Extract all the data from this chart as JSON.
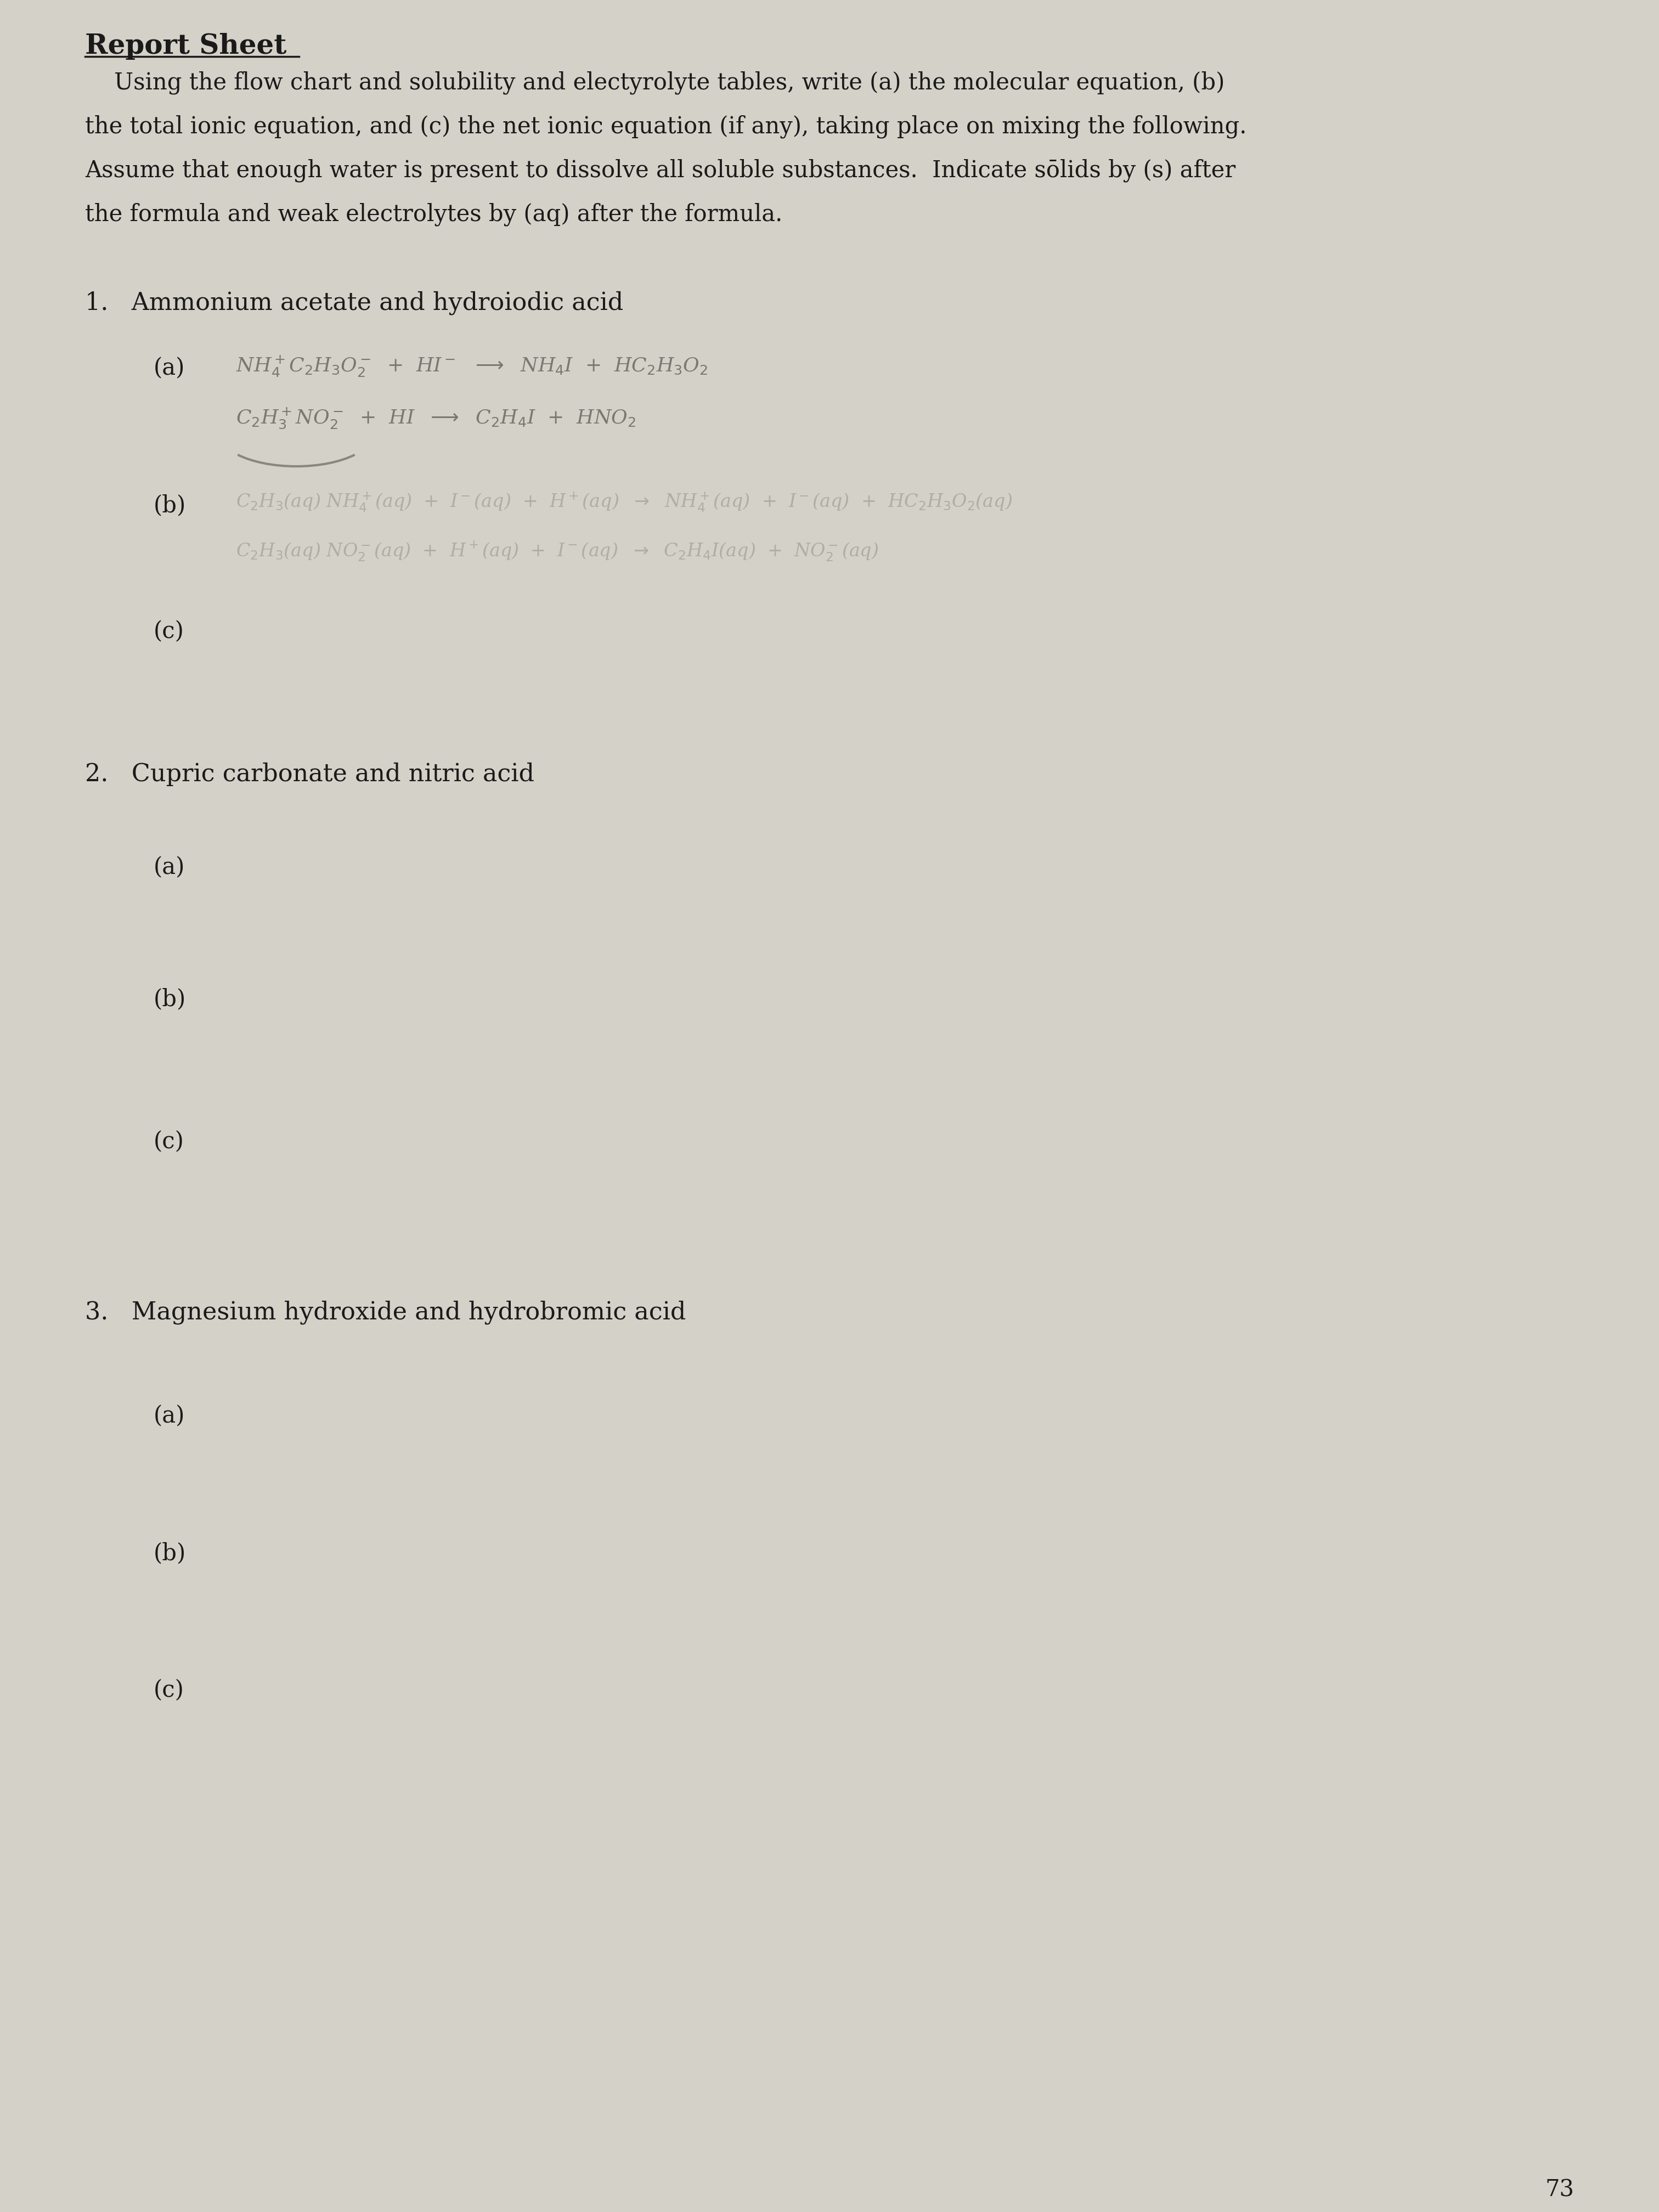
{
  "bg_color": "#d4d1c8",
  "title": "Report Sheet",
  "instructions_line1": "    Using the flow chart and solubility and electyrolyte tables, write (a) the molecular equation, (b)",
  "instructions_line2": "the total ionic equation, and (c) the net ionic equation (if any), taking place on mixing the following.",
  "instructions_line3": "Assume that enough water is present to dissolve all soluble substances.  Indicate sōlids by (s) after",
  "instructions_line4": "the formula and weak electrolytes by (aq) after the formula.",
  "problem1_label": "1.   Ammonium acetate and hydroiodic acid",
  "p1_a_label": "(a)",
  "p1_b_label": "(b)",
  "p1_c_label": "(c)",
  "problem2_label": "2.   Cupric carbonate and nitric acid",
  "p2_a_label": "(a)",
  "p2_b_label": "(b)",
  "p2_c_label": "(c)",
  "problem3_label": "3.   Magnesium hydroxide and hydrobromic acid",
  "p3_a_label": "(a)",
  "p3_b_label": "(b)",
  "p3_c_label": "(c)",
  "page_number": "73",
  "title_fontsize": 36,
  "body_fontsize": 30,
  "label_fontsize": 30,
  "problem_fontsize": 32,
  "hw_fontsize": 26,
  "hw_faint_fontsize": 24,
  "hw_color": "#7a7870",
  "hw_faint_color": "#b0ada4",
  "text_color": "#1a1a1a"
}
